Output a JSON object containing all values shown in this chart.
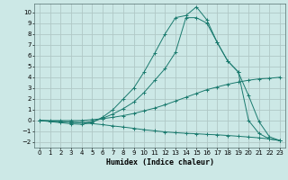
{
  "xlabel": "Humidex (Indice chaleur)",
  "xlim": [
    -0.5,
    23.5
  ],
  "ylim": [
    -2.5,
    10.8
  ],
  "xticks": [
    0,
    1,
    2,
    3,
    4,
    5,
    6,
    7,
    8,
    9,
    10,
    11,
    12,
    13,
    14,
    15,
    16,
    17,
    18,
    19,
    20,
    21,
    22,
    23
  ],
  "yticks": [
    -2,
    -1,
    0,
    1,
    2,
    3,
    4,
    5,
    6,
    7,
    8,
    9,
    10
  ],
  "background_color": "#cce8e6",
  "grid_color": "#b0c8c6",
  "line_color": "#1a7a6e",
  "line1_x": [
    0,
    1,
    2,
    3,
    4,
    5,
    6,
    7,
    8,
    9,
    10,
    11,
    12,
    13,
    14,
    15,
    16,
    17,
    18,
    19,
    20,
    21,
    22,
    23
  ],
  "line1_y": [
    0,
    -0.05,
    -0.1,
    -0.15,
    -0.2,
    -0.28,
    -0.38,
    -0.5,
    -0.6,
    -0.72,
    -0.85,
    -0.95,
    -1.05,
    -1.12,
    -1.18,
    -1.22,
    -1.28,
    -1.32,
    -1.38,
    -1.45,
    -1.52,
    -1.6,
    -1.7,
    -1.85
  ],
  "line2_x": [
    0,
    1,
    2,
    3,
    4,
    5,
    6,
    7,
    8,
    9,
    10,
    11,
    12,
    13,
    14,
    15,
    16,
    17,
    18,
    19,
    20,
    21,
    22,
    23
  ],
  "line2_y": [
    0,
    0,
    0,
    0,
    0,
    0.08,
    0.17,
    0.3,
    0.45,
    0.65,
    0.9,
    1.15,
    1.45,
    1.8,
    2.15,
    2.5,
    2.85,
    3.1,
    3.35,
    3.55,
    3.72,
    3.85,
    3.9,
    4.0
  ],
  "line3_x": [
    0,
    1,
    2,
    3,
    4,
    5,
    6,
    7,
    8,
    9,
    10,
    11,
    12,
    13,
    14,
    15,
    16,
    17,
    18,
    19,
    20,
    21,
    22,
    23
  ],
  "line3_y": [
    0,
    -0.05,
    -0.1,
    -0.15,
    -0.2,
    -0.1,
    0.2,
    0.6,
    1.1,
    1.7,
    2.6,
    3.7,
    4.8,
    6.3,
    9.5,
    9.5,
    9.0,
    7.2,
    5.5,
    4.5,
    2.3,
    -0.1,
    -1.5,
    -1.85
  ],
  "line4_x": [
    0,
    1,
    2,
    3,
    4,
    5,
    6,
    7,
    8,
    9,
    10,
    11,
    12,
    13,
    14,
    15,
    16,
    17,
    18,
    19,
    20,
    21,
    22,
    23
  ],
  "line4_y": [
    0,
    -0.1,
    -0.2,
    -0.3,
    -0.35,
    -0.2,
    0.3,
    1.0,
    2.0,
    3.0,
    4.5,
    6.2,
    8.0,
    9.5,
    9.7,
    10.5,
    9.3,
    7.2,
    5.5,
    4.5,
    0.0,
    -1.2,
    -1.7,
    -1.85
  ]
}
